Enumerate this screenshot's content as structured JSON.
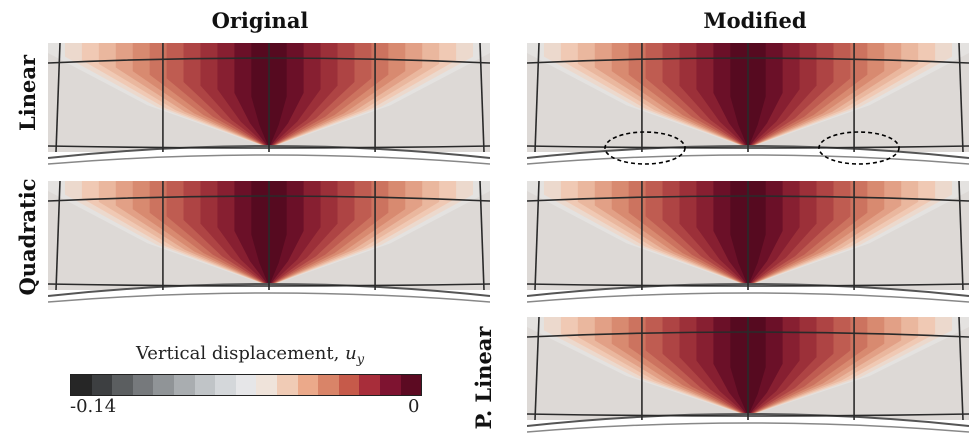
{
  "columns": {
    "left": "Original",
    "right": "Modified"
  },
  "rows": {
    "linear": "Linear",
    "quadratic": "Quadratic",
    "plinear": "P. Linear"
  },
  "colorbar": {
    "title": "Vertical displacement,",
    "symbol": "u",
    "subscript": "y",
    "min_label": "-0.14",
    "max_label": "0",
    "colors": [
      "#262626",
      "#3d3f41",
      "#5b5e60",
      "#76797c",
      "#909497",
      "#a9adb0",
      "#c0c4c7",
      "#d4d7da",
      "#e6e6e8",
      "#efe3da",
      "#f0cbb5",
      "#eba98a",
      "#d98468",
      "#c65a4a",
      "#a82d3a",
      "#7e1330",
      "#5c0a22"
    ]
  },
  "panels": [
    {
      "id": "original-linear",
      "annotated": false
    },
    {
      "id": "original-quadratic",
      "annotated": false
    },
    {
      "id": "modified-linear",
      "annotated": true
    },
    {
      "id": "modified-quadratic",
      "annotated": false
    },
    {
      "id": "modified-plinear",
      "annotated": false
    }
  ]
}
